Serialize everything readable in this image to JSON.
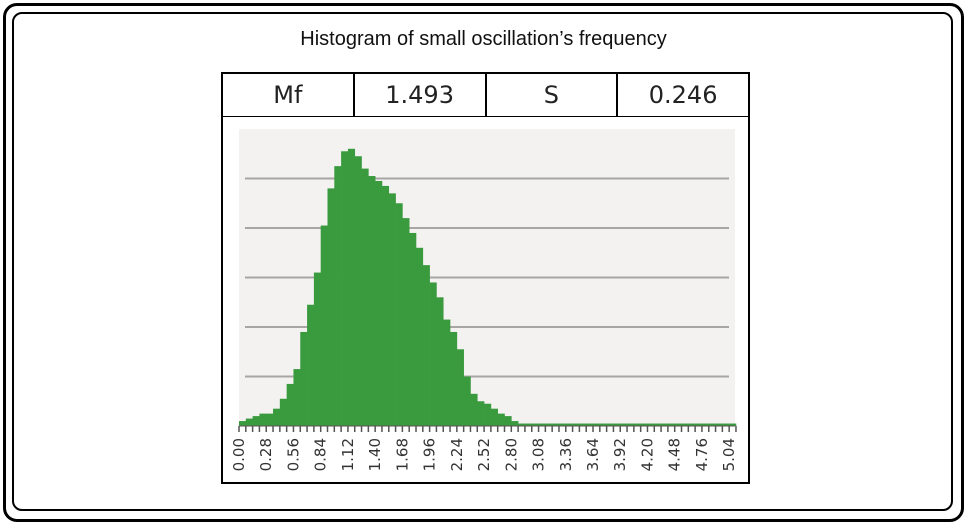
{
  "title": "Histogram of small oscillation’s frequency",
  "stats": [
    {
      "label": "Mf",
      "value": "1.493"
    },
    {
      "label": "S",
      "value": "0.246"
    }
  ],
  "colors": {
    "bar": "#3a9a3e",
    "plot_bg": "#f3f2f1",
    "grid": "#a8a6a4",
    "tick": "#555555"
  },
  "chart_data": {
    "type": "bar",
    "title": "Histogram of small oscillation’s frequency",
    "xlabel": "",
    "ylabel": "",
    "xlim": [
      0.0,
      5.1
    ],
    "grid": true,
    "tick_labels": [
      "0.00",
      "0.28",
      "0.56",
      "0.84",
      "1.12",
      "1.40",
      "1.68",
      "1.96",
      "2.24",
      "2.52",
      "2.80",
      "3.08",
      "3.36",
      "3.64",
      "3.92",
      "4.20",
      "4.48",
      "4.76",
      "5.04"
    ],
    "bin_width": 0.07,
    "x": [
      0.0,
      0.07,
      0.14,
      0.21,
      0.28,
      0.35,
      0.42,
      0.49,
      0.56,
      0.63,
      0.7,
      0.77,
      0.84,
      0.91,
      0.98,
      1.05,
      1.12,
      1.19,
      1.26,
      1.33,
      1.4,
      1.47,
      1.54,
      1.61,
      1.68,
      1.75,
      1.82,
      1.89,
      1.96,
      2.03,
      2.1,
      2.17,
      2.24,
      2.31,
      2.38,
      2.45,
      2.52,
      2.59,
      2.66,
      2.73,
      2.8,
      2.87,
      2.94,
      3.01,
      3.08,
      3.15,
      3.22,
      3.29,
      3.36,
      3.43,
      3.5,
      3.57,
      3.64,
      3.71,
      3.78,
      3.85,
      3.92,
      3.99,
      4.06,
      4.13,
      4.2,
      4.27,
      4.34,
      4.41,
      4.48,
      4.55,
      4.62,
      4.69,
      4.76,
      4.83,
      4.9,
      4.97,
      5.04
    ],
    "values": [
      2,
      3,
      4,
      5,
      5,
      7,
      11,
      17,
      23,
      38,
      49,
      62,
      81,
      96,
      105,
      111,
      112,
      109,
      104,
      101,
      99,
      97,
      94,
      90,
      84,
      78,
      72,
      65,
      58,
      52,
      43,
      38,
      31,
      20,
      13,
      10,
      9,
      7,
      5,
      4,
      2,
      1,
      1,
      1,
      1,
      1,
      1,
      1,
      1,
      1,
      1,
      1,
      1,
      1,
      1,
      1,
      1,
      1,
      1,
      1,
      1,
      1,
      1,
      1,
      1,
      1,
      1,
      1,
      1,
      1,
      1,
      1,
      1
    ],
    "ylim": [
      0,
      120
    ],
    "gridlines": [
      20,
      40,
      60,
      80,
      100
    ]
  }
}
